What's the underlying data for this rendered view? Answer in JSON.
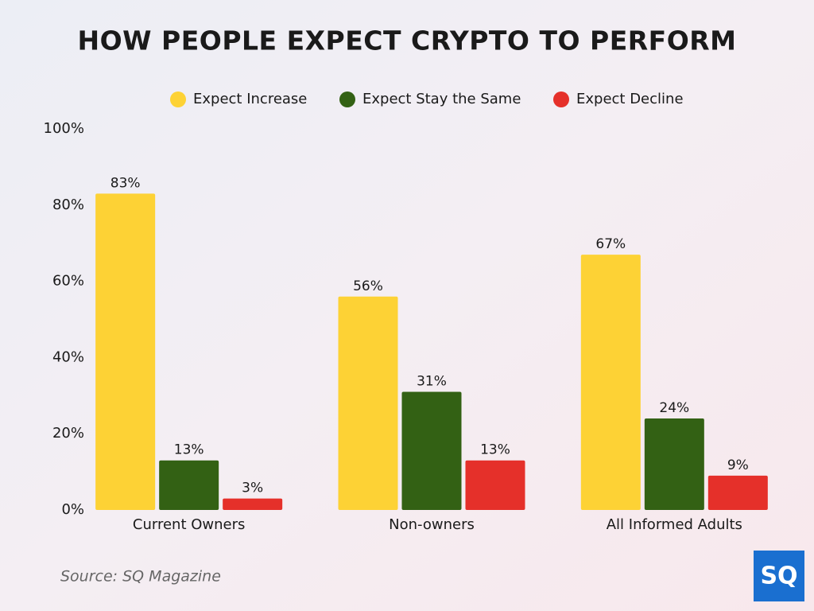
{
  "chart_data": {
    "type": "bar",
    "title": "HOW PEOPLE EXPECT CRYPTO TO PERFORM",
    "categories": [
      "Current Owners",
      "Non-owners",
      "All Informed Adults"
    ],
    "series": [
      {
        "name": "Expect Increase",
        "color": "#fdd235",
        "values": [
          83,
          56,
          67
        ],
        "value_labels": [
          "83%",
          "56%",
          "67%"
        ]
      },
      {
        "name": "Expect Stay the Same",
        "color": "#336114",
        "values": [
          13,
          31,
          24
        ],
        "value_labels": [
          "13%",
          "31%",
          "24%"
        ]
      },
      {
        "name": "Expect Decline",
        "color": "#e5302a",
        "values": [
          3,
          13,
          9
        ],
        "value_labels": [
          "3%",
          "13%",
          "9%"
        ]
      }
    ],
    "ylim": [
      0,
      100
    ],
    "yticks": [
      {
        "value": 0,
        "label": "0%"
      },
      {
        "value": 20,
        "label": "20%"
      },
      {
        "value": 40,
        "label": "40%"
      },
      {
        "value": 60,
        "label": "60%"
      },
      {
        "value": 80,
        "label": "80%"
      },
      {
        "value": 100,
        "label": "100%"
      }
    ],
    "grid": false,
    "legend": "top"
  },
  "footer": {
    "source": "Source: SQ Magazine",
    "logo": "SQ"
  }
}
